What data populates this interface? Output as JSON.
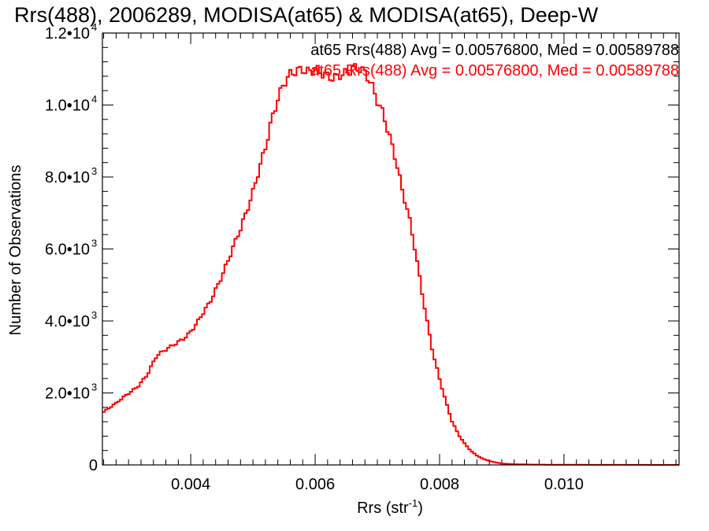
{
  "chart_data": {
    "type": "histogram",
    "title": "Rrs(488), 2006289, MODISA(at65) & MODISA(at65), Deep-W",
    "xlabel": "Rrs (str",
    "xlabel_sup": "-1",
    "xlabel_close": ")",
    "ylabel": "Number of Observations",
    "xlim": [
      0.00258,
      0.01185
    ],
    "ylim": [
      0,
      12000
    ],
    "x_ticks": [
      {
        "value": 0.004,
        "label": "0.004"
      },
      {
        "value": 0.006,
        "label": "0.006"
      },
      {
        "value": 0.008,
        "label": "0.008"
      },
      {
        "value": 0.01,
        "label": "0.010"
      }
    ],
    "y_ticks": [
      {
        "value": 0,
        "mant": "0",
        "exp": ""
      },
      {
        "value": 2000,
        "mant": "2.0•10",
        "exp": "3"
      },
      {
        "value": 4000,
        "mant": "4.0•10",
        "exp": "3"
      },
      {
        "value": 6000,
        "mant": "6.0•10",
        "exp": "3"
      },
      {
        "value": 8000,
        "mant": "8.0•10",
        "exp": "3"
      },
      {
        "value": 10000,
        "mant": "1.0•10",
        "exp": "4"
      },
      {
        "value": 12000,
        "mant": "1.2•10",
        "exp": "4"
      }
    ],
    "annotations": [
      {
        "text": "at65 Rrs(488) Avg = 0.00576800, Med = 0.00589788",
        "color": "#000000"
      },
      {
        "text": "at65 Rrs(488) Avg = 0.00576800, Med = 0.00589788",
        "color": "#ff0000"
      }
    ],
    "series": [
      {
        "color": "#ff0000",
        "points": [
          [
            0.00258,
            1450
          ],
          [
            0.0028,
            1700
          ],
          [
            0.003,
            2000
          ],
          [
            0.00315,
            2200
          ],
          [
            0.0033,
            2500
          ],
          [
            0.00345,
            3000
          ],
          [
            0.0036,
            3200
          ],
          [
            0.00375,
            3400
          ],
          [
            0.00385,
            3500
          ],
          [
            0.00395,
            3600
          ],
          [
            0.0041,
            3900
          ],
          [
            0.0042,
            4200
          ],
          [
            0.0043,
            4500
          ],
          [
            0.0044,
            4900
          ],
          [
            0.0045,
            5300
          ],
          [
            0.0046,
            5700
          ],
          [
            0.0047,
            6100
          ],
          [
            0.0048,
            6500
          ],
          [
            0.0049,
            7000
          ],
          [
            0.005,
            7600
          ],
          [
            0.0051,
            8300
          ],
          [
            0.0052,
            8900
          ],
          [
            0.0053,
            9600
          ],
          [
            0.0054,
            10100
          ],
          [
            0.0055,
            10500
          ],
          [
            0.0056,
            10800
          ],
          [
            0.0057,
            11000
          ],
          [
            0.0058,
            11100
          ],
          [
            0.0059,
            11000
          ],
          [
            0.006,
            11000
          ],
          [
            0.0061,
            10800
          ],
          [
            0.0062,
            10700
          ],
          [
            0.0063,
            10700
          ],
          [
            0.0064,
            10900
          ],
          [
            0.0065,
            11000
          ],
          [
            0.0066,
            11100
          ],
          [
            0.0067,
            11000
          ],
          [
            0.0068,
            10800
          ],
          [
            0.0069,
            10500
          ],
          [
            0.007,
            10100
          ],
          [
            0.0071,
            9800
          ],
          [
            0.0072,
            9200
          ],
          [
            0.0073,
            8500
          ],
          [
            0.0074,
            7600
          ],
          [
            0.0075,
            6900
          ],
          [
            0.0076,
            6000
          ],
          [
            0.0077,
            5000
          ],
          [
            0.0078,
            4000
          ],
          [
            0.0079,
            3100
          ],
          [
            0.008,
            2400
          ],
          [
            0.0081,
            1750
          ],
          [
            0.0082,
            1200
          ],
          [
            0.0083,
            850
          ],
          [
            0.0084,
            600
          ],
          [
            0.0085,
            400
          ],
          [
            0.0086,
            260
          ],
          [
            0.0087,
            170
          ],
          [
            0.0088,
            110
          ],
          [
            0.0089,
            70
          ],
          [
            0.009,
            40
          ],
          [
            0.0092,
            20
          ],
          [
            0.0095,
            10
          ],
          [
            0.01,
            4
          ],
          [
            0.01185,
            0
          ]
        ]
      }
    ]
  }
}
